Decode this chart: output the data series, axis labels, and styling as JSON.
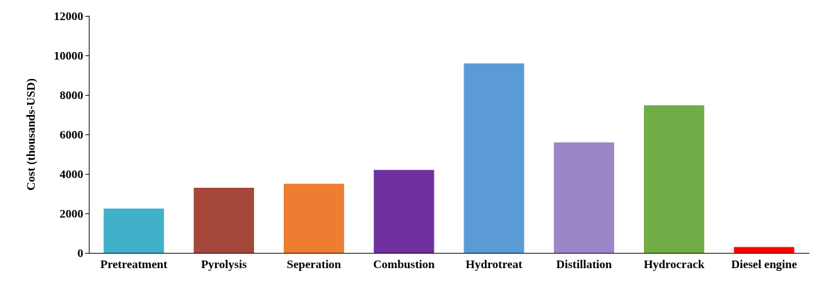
{
  "chart_data": {
    "type": "bar",
    "ylabel": "Cost (thousands-USD)",
    "categories": [
      "Pretreatment",
      "Pyrolysis",
      "Seperation",
      "Combustion",
      "Hydrotreat",
      "Distillation",
      "Hydrocrack",
      "Diesel engine"
    ],
    "values": [
      2250,
      3300,
      3500,
      4200,
      9600,
      5600,
      7470,
      300
    ],
    "colors": [
      "#41b0c9",
      "#a5473a",
      "#ed7d31",
      "#7030a0",
      "#5b9bd5",
      "#9a86c8",
      "#70ad47",
      "#ff0000"
    ],
    "ylim": [
      0,
      12000
    ],
    "yticks": [
      0,
      2000,
      4000,
      6000,
      8000,
      10000,
      12000
    ],
    "grid": false
  }
}
